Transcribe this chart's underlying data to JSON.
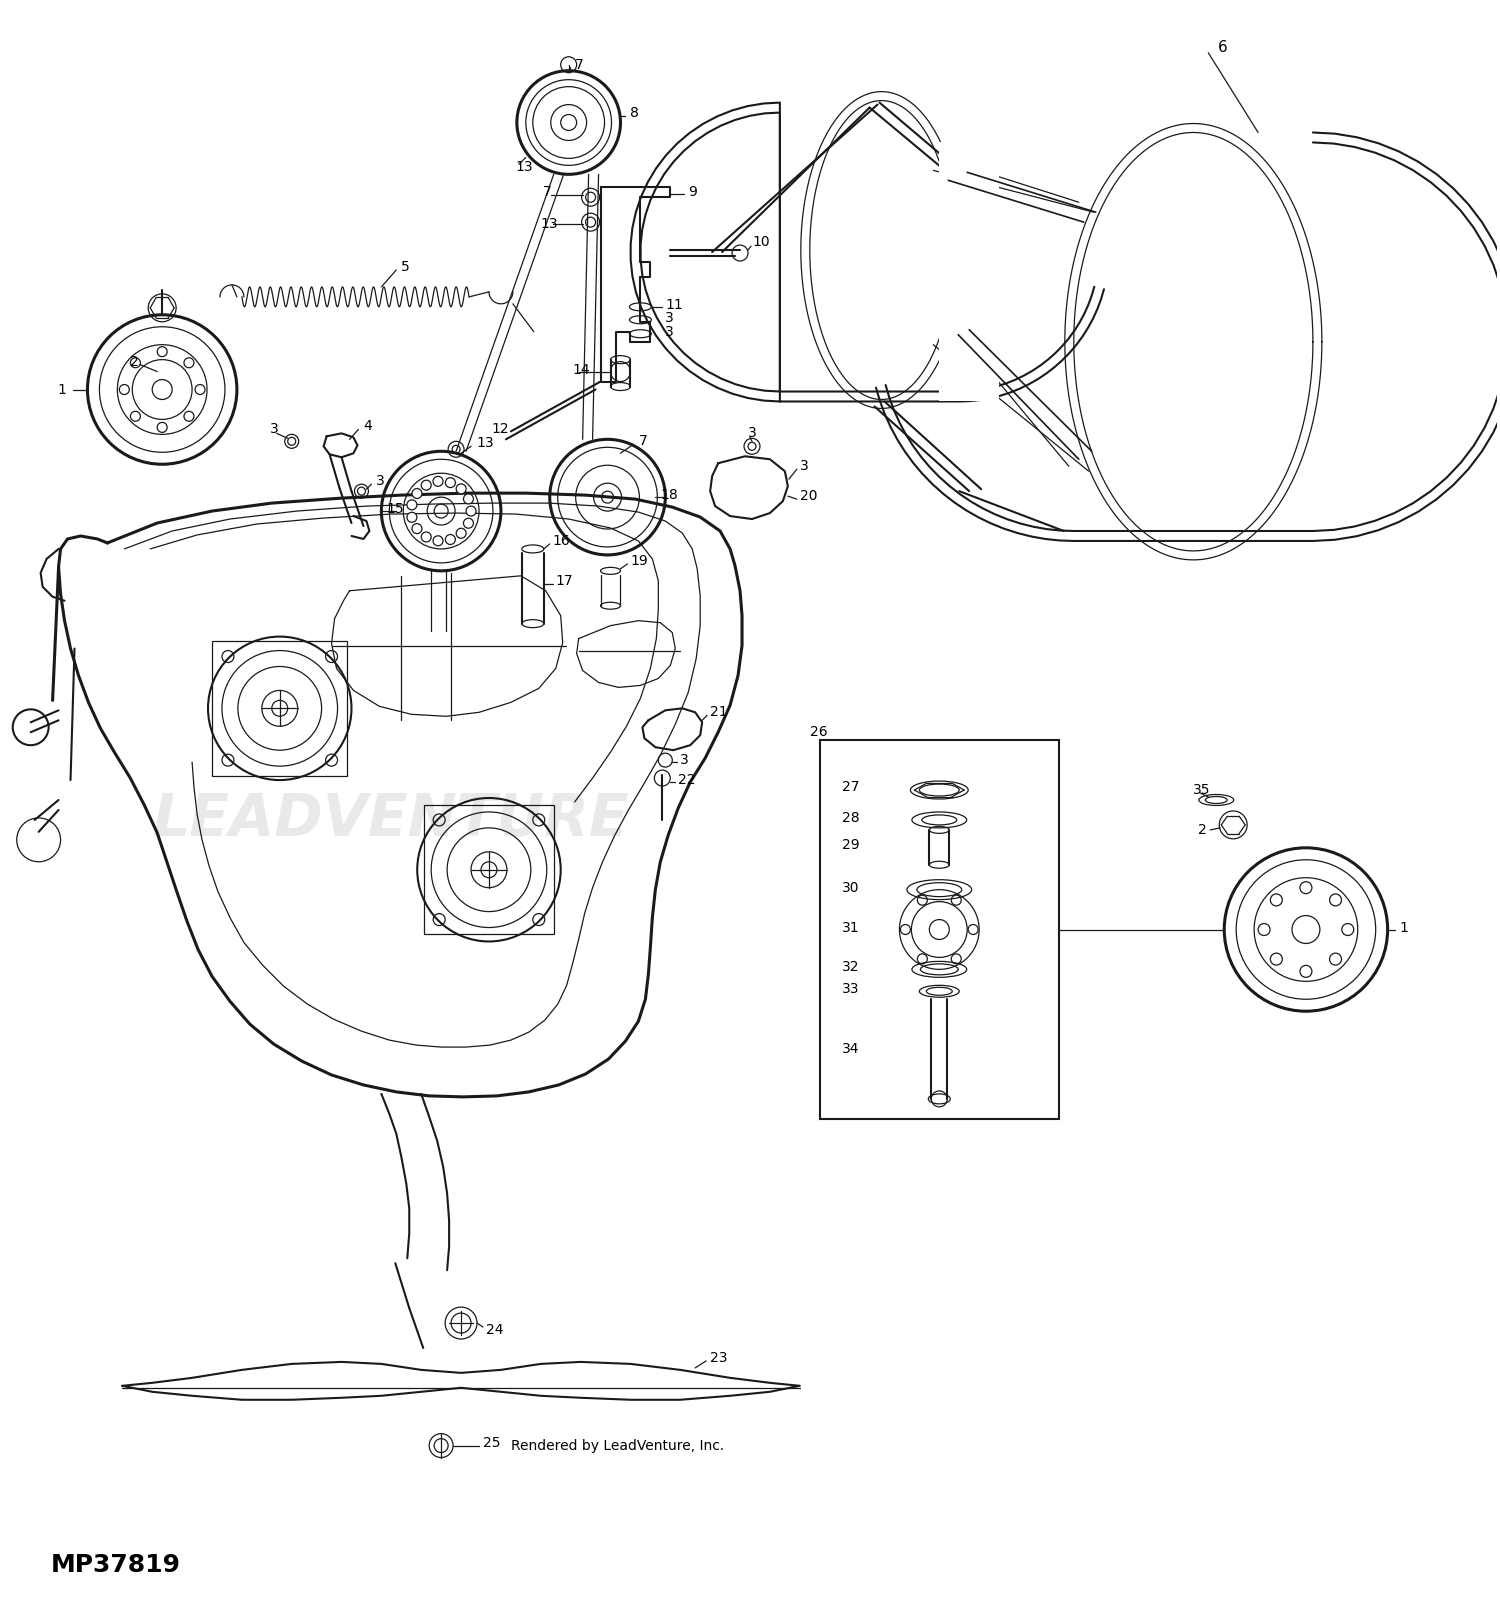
{
  "background_color": "#ffffff",
  "line_color": "#1a1a1a",
  "text_color": "#000000",
  "watermark": "LEADVENTURE",
  "bottom_left_text": "MP37819",
  "bottom_right_text": "Rendered by LeadVenture, Inc.",
  "figsize": [
    15.0,
    15.97
  ],
  "dpi": 100,
  "lw_thick": 2.2,
  "lw_main": 1.5,
  "lw_thin": 0.9,
  "lw_belt": 2.0
}
